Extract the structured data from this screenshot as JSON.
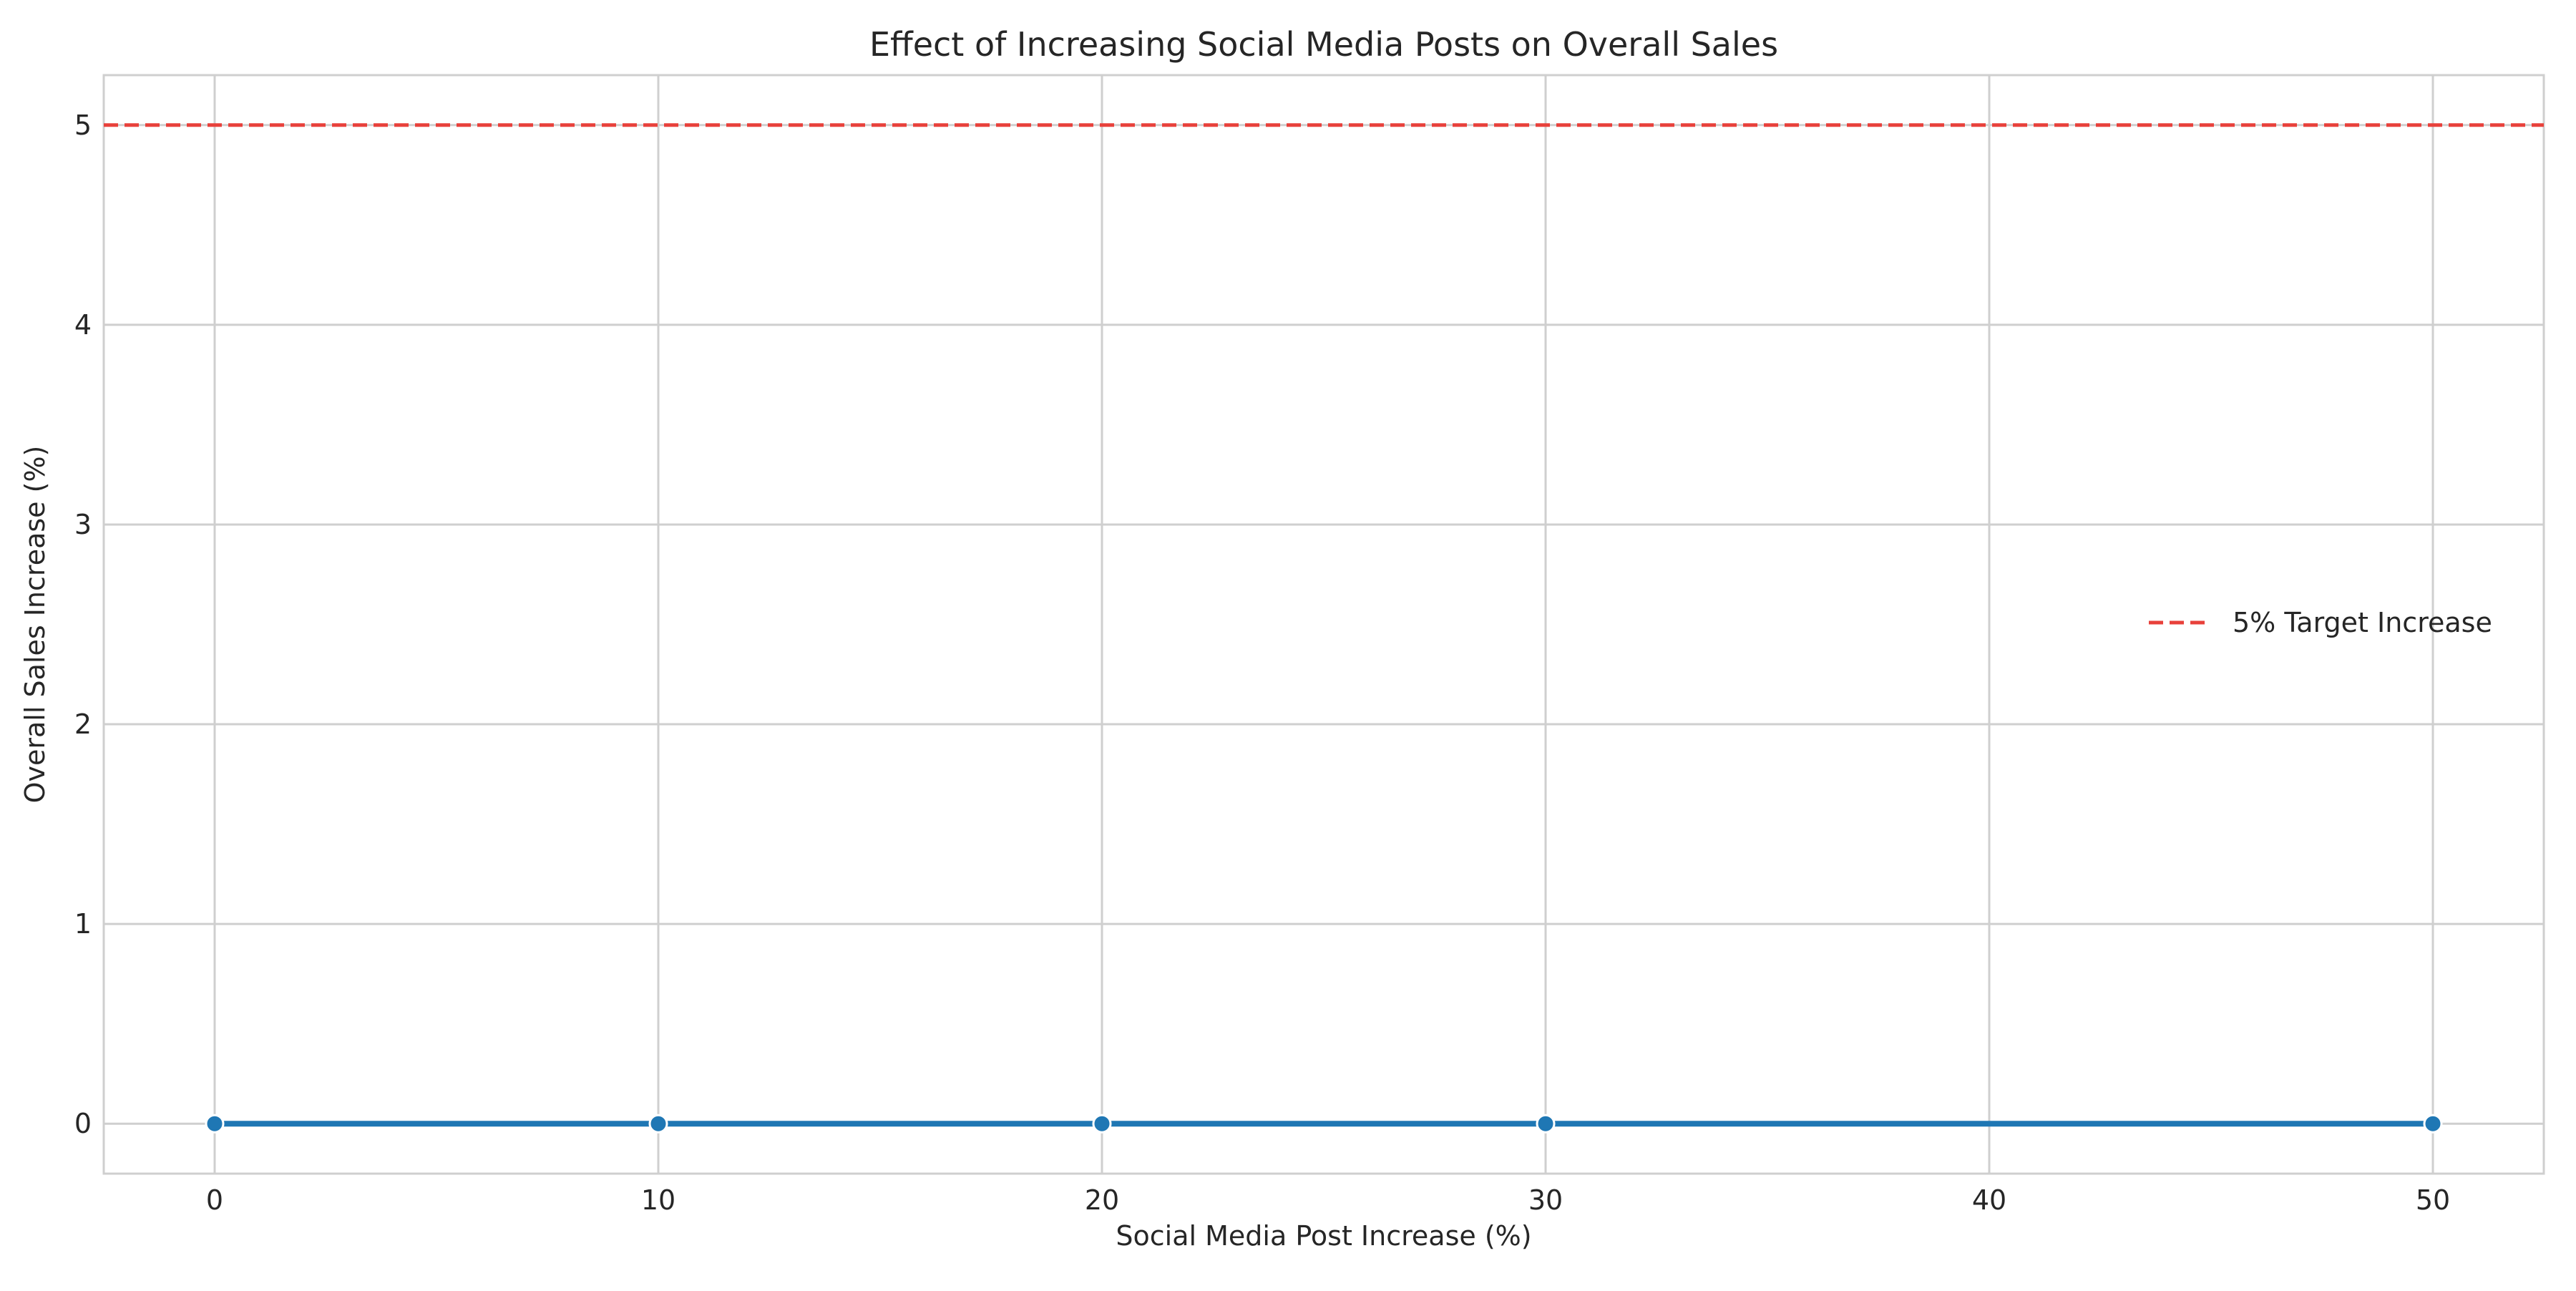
{
  "chart_data": {
    "type": "line",
    "title": "Effect of Increasing Social Media Posts on Overall Sales",
    "xlabel": "Social Media Post Increase (%)",
    "ylabel": "Overall Sales Increase (%)",
    "xlim": [
      -2.5,
      52.5
    ],
    "ylim": [
      -0.25,
      5.25
    ],
    "x_ticks": [
      0,
      10,
      20,
      30,
      40,
      50
    ],
    "y_ticks": [
      0,
      1,
      2,
      3,
      4,
      5
    ],
    "grid": true,
    "legend_position": "center-right",
    "series": [
      {
        "x": [
          0,
          10,
          20,
          30,
          50
        ],
        "y": [
          0,
          0,
          0,
          0,
          0
        ],
        "color": "#1f77b4",
        "marker": "circle"
      }
    ],
    "reference_lines": [
      {
        "name": "5% Target Increase",
        "orientation": "horizontal",
        "y": 5,
        "color": "#e8413b",
        "style": "dashed"
      }
    ]
  }
}
